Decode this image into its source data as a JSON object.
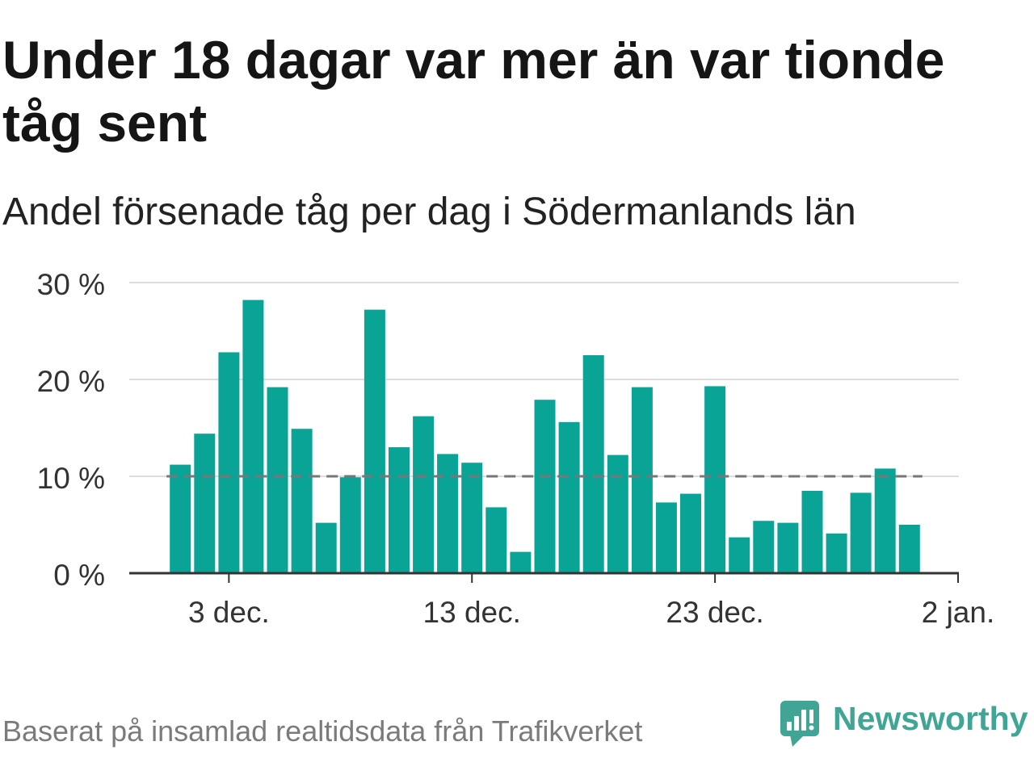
{
  "chart_data": {
    "type": "bar",
    "title": "Under 18 dagar var mer än var tionde tåg sent",
    "subtitle": "Andel försenade tåg per dag i Södermanlands län",
    "x": [
      "1 dec.",
      "2 dec.",
      "3 dec.",
      "4 dec.",
      "5 dec.",
      "6 dec.",
      "7 dec.",
      "8 dec.",
      "9 dec.",
      "10 dec.",
      "11 dec.",
      "12 dec.",
      "13 dec.",
      "14 dec.",
      "15 dec.",
      "16 dec.",
      "17 dec.",
      "18 dec.",
      "19 dec.",
      "20 dec.",
      "21 dec.",
      "22 dec.",
      "23 dec.",
      "24 dec.",
      "25 dec.",
      "26 dec.",
      "27 dec.",
      "28 dec.",
      "29 dec.",
      "30 dec.",
      "31 dec."
    ],
    "values": [
      11.2,
      14.4,
      22.8,
      28.2,
      19.2,
      14.9,
      5.2,
      9.9,
      27.2,
      13.0,
      16.2,
      12.3,
      11.4,
      6.8,
      2.2,
      17.9,
      15.6,
      22.5,
      12.2,
      19.2,
      7.3,
      8.2,
      19.3,
      3.7,
      5.4,
      5.2,
      8.5,
      4.1,
      8.3,
      10.8,
      5.0
    ],
    "xlim": [
      "29 nov.",
      "2 jan."
    ],
    "ylim": [
      0,
      30
    ],
    "x_ticks": [
      "3 dec.",
      "13 dec.",
      "23 dec.",
      "2 jan."
    ],
    "y_ticks": [
      {
        "value": 0,
        "label": "0 %"
      },
      {
        "value": 10,
        "label": "10 %"
      },
      {
        "value": 20,
        "label": "20 %"
      },
      {
        "value": 30,
        "label": "30 %"
      }
    ],
    "reference_line": {
      "value": 10
    },
    "grid": true
  },
  "footer": {
    "source": "Baserat på insamlad realtidsdata från Trafikverket",
    "brand": "Newsworthy",
    "brand_icon": "newsworthy-logo-icon"
  },
  "colors": {
    "bar": "#0aa497",
    "reference_line": "#777777",
    "brand": "#41a596"
  }
}
